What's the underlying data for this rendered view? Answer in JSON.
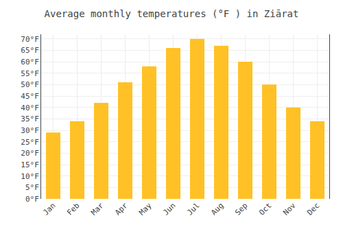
{
  "chart_data": {
    "type": "bar",
    "title": "Average monthly temperatures (°F ) in Ziārat",
    "categories": [
      "Jan",
      "Feb",
      "Mar",
      "Apr",
      "May",
      "Jun",
      "Jul",
      "Aug",
      "Sep",
      "Oct",
      "Nov",
      "Dec"
    ],
    "values": [
      29,
      34,
      42,
      51,
      58,
      66,
      70,
      67,
      60,
      50,
      40,
      34
    ],
    "color": "#FFC125",
    "ylim": [
      0,
      72
    ],
    "yticks": [
      {
        "value": 0,
        "label": "0°F"
      },
      {
        "value": 5,
        "label": "5°F"
      },
      {
        "value": 10,
        "label": "10°F"
      },
      {
        "value": 15,
        "label": "15°F"
      },
      {
        "value": 20,
        "label": "20°F"
      },
      {
        "value": 25,
        "label": "25°F"
      },
      {
        "value": 30,
        "label": "30°F"
      },
      {
        "value": 35,
        "label": "35°F"
      },
      {
        "value": 40,
        "label": "40°F"
      },
      {
        "value": 45,
        "label": "45°F"
      },
      {
        "value": 50,
        "label": "50°F"
      },
      {
        "value": 55,
        "label": "55°F"
      },
      {
        "value": 60,
        "label": "60°F"
      },
      {
        "value": 65,
        "label": "65°F"
      },
      {
        "value": 70,
        "label": "70°F"
      }
    ],
    "grid": true
  }
}
